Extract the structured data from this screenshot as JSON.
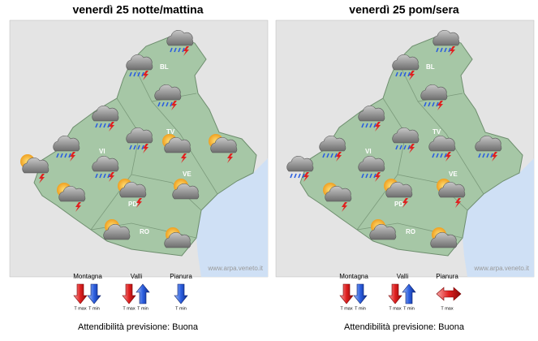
{
  "panels": [
    {
      "title": "venerdì 25 notte/mattina",
      "labels": [
        "BL",
        "TV",
        "VI",
        "PD",
        "VE",
        "RO"
      ],
      "watermark": "www.arpa.veneto.it",
      "trends": [
        {
          "zone": "Montagna",
          "arrows": [
            {
              "label": "T max",
              "dir": "down",
              "color": "red"
            },
            {
              "label": "T min",
              "dir": "down",
              "color": "blue"
            }
          ]
        },
        {
          "zone": "Valli",
          "arrows": [
            {
              "label": "T max",
              "dir": "down",
              "color": "red"
            },
            {
              "label": "T min",
              "dir": "up",
              "color": "blue"
            }
          ]
        },
        {
          "zone": "Pianura",
          "arrows": [
            {
              "label": "T min",
              "dir": "down",
              "color": "blue"
            }
          ]
        }
      ],
      "reliability": "Attendibilità previsione: Buona"
    },
    {
      "title": "venerdì 25 pom/sera",
      "labels": [
        "BL",
        "TV",
        "VI",
        "PD",
        "VE",
        "RO"
      ],
      "watermark": "www.arpa.veneto.it",
      "trends": [
        {
          "zone": "Montagna",
          "arrows": [
            {
              "label": "T max",
              "dir": "down",
              "color": "red"
            },
            {
              "label": "T min",
              "dir": "down",
              "color": "blue"
            }
          ]
        },
        {
          "zone": "Valli",
          "arrows": [
            {
              "label": "T max",
              "dir": "down",
              "color": "red"
            },
            {
              "label": "T min",
              "dir": "up",
              "color": "blue"
            }
          ]
        },
        {
          "zone": "Pianura",
          "arrows": [
            {
              "label": "T max",
              "dir": "flat",
              "color": "red"
            }
          ]
        }
      ],
      "reliability": "Attendibilità previsione: Buona"
    }
  ]
}
